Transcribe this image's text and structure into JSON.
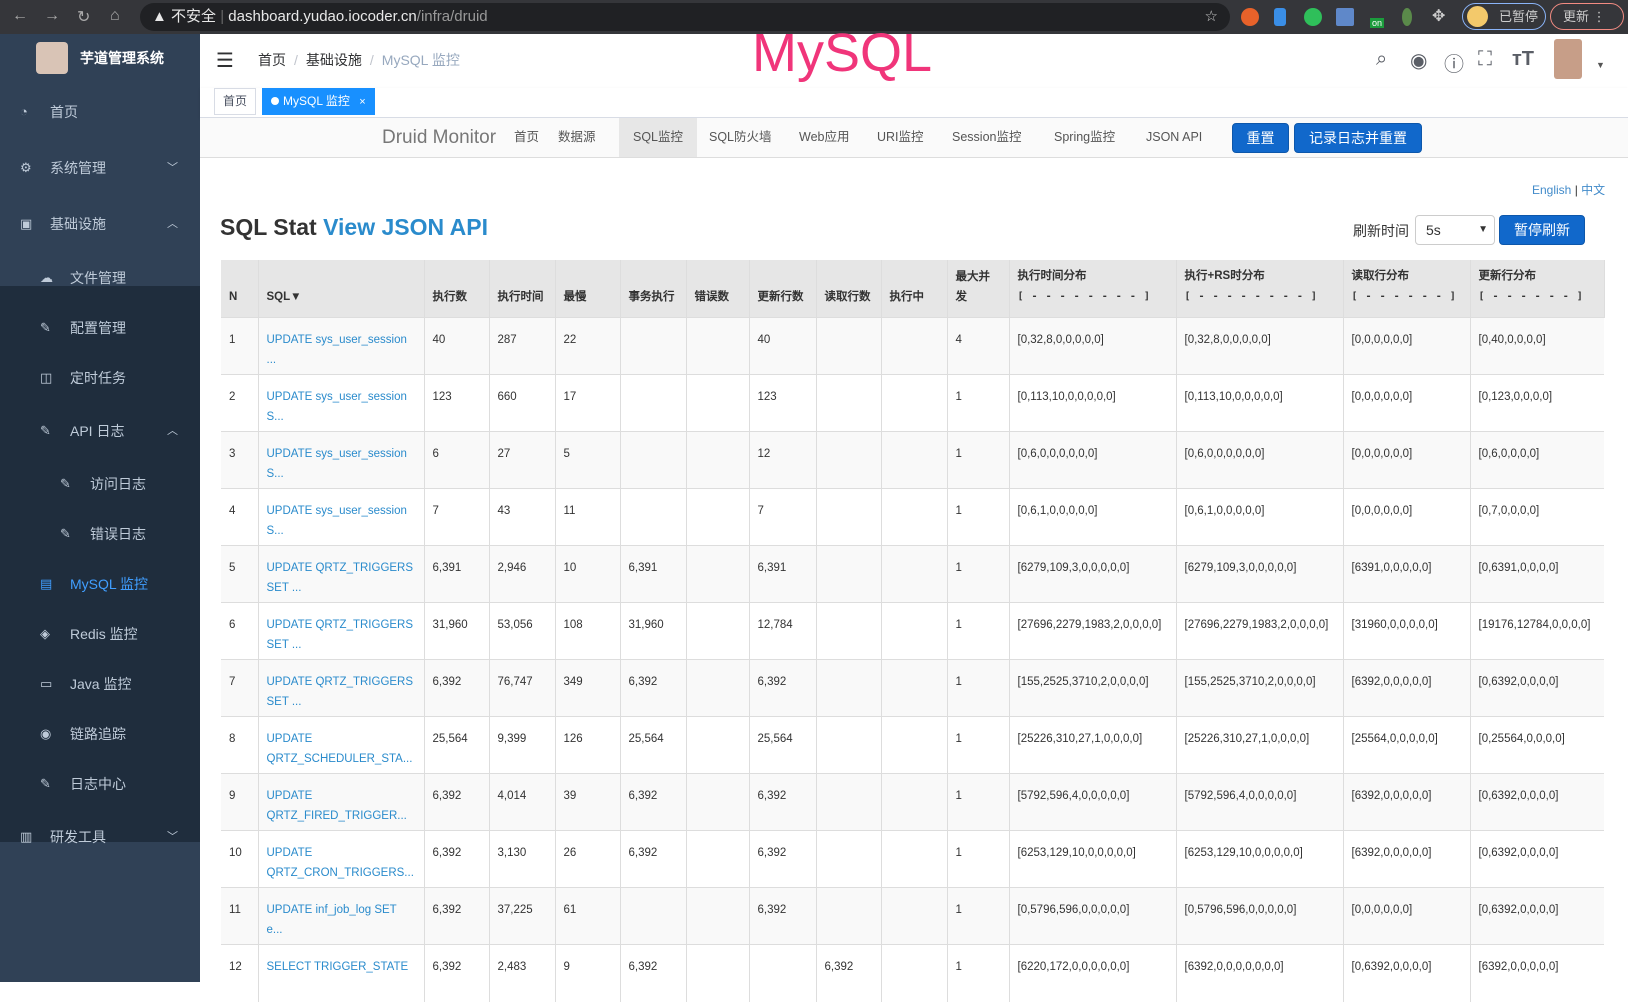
{
  "browser": {
    "security": "不安全",
    "url_host": "dashboard.yudao.iocoder.cn",
    "url_path": "/infra/druid",
    "paused": "已暂停",
    "update": "更新",
    "ext_on": "on"
  },
  "app": {
    "name": "芋道管理系统",
    "watermark": "MySQL"
  },
  "sidebar": {
    "items": [
      {
        "label": "首页",
        "icon": "dashboard-icon"
      },
      {
        "label": "系统管理",
        "icon": "gear-icon",
        "chevron": "﹀"
      },
      {
        "label": "基础设施",
        "icon": "monitor-icon",
        "chevron": "︿"
      },
      {
        "label": "文件管理",
        "icon": "upload-icon"
      },
      {
        "label": "配置管理",
        "icon": "edit-icon"
      },
      {
        "label": "定时任务",
        "icon": "job-icon"
      },
      {
        "label": "API 日志",
        "icon": "log-icon",
        "chevron": "︿"
      },
      {
        "label": "访问日志",
        "icon": "log-icon"
      },
      {
        "label": "错误日志",
        "icon": "log-icon"
      },
      {
        "label": "MySQL 监控",
        "icon": "database-icon",
        "active": true
      },
      {
        "label": "Redis 监控",
        "icon": "redis-icon"
      },
      {
        "label": "Java 监控",
        "icon": "server-icon"
      },
      {
        "label": "链路追踪",
        "icon": "eye-icon"
      },
      {
        "label": "日志中心",
        "icon": "log-icon"
      },
      {
        "label": "研发工具",
        "icon": "toolbox-icon",
        "chevron": "﹀"
      }
    ]
  },
  "breadcrumb": [
    "首页",
    "基础设施",
    "MySQL 监控"
  ],
  "tags": [
    {
      "label": "首页"
    },
    {
      "label": "MySQL 监控",
      "close": "×"
    }
  ],
  "druid": {
    "brand": "Druid Monitor",
    "nav": [
      "首页",
      "数据源",
      "SQL监控",
      "SQL防火墙",
      "Web应用",
      "URI监控",
      "Session监控",
      "Spring监控",
      "JSON API"
    ],
    "active": "SQL监控",
    "reset": "重置",
    "log_reset": "记录日志并重置"
  },
  "lang": {
    "en": "English",
    "sep": "|",
    "zh": "中文"
  },
  "page": {
    "title": "SQL Stat",
    "link": "View JSON API",
    "refresh_label": "刷新时间",
    "refresh_value": "5s",
    "pause": "暂停刷新"
  },
  "table": {
    "headers": [
      "N",
      "SQL▼",
      "执行数",
      "执行时间",
      "最慢",
      "事务执行",
      "错误数",
      "更新行数",
      "读取行数",
      "执行中",
      "最大并发",
      "执行时间分布",
      "执行+RS时分布",
      "读取行分布",
      "更新行分布"
    ],
    "header_sub": {
      "11": "[ - - - - - - - - ]",
      "12": "[ - - - - - - - - ]",
      "13": "[ - - - - - - ]",
      "14": "[ - - - - - - ]"
    },
    "rows": [
      [
        "1",
        "UPDATE sys_user_session ...",
        "40",
        "287",
        "22",
        "",
        "",
        "40",
        "",
        "",
        "4",
        "[0,32,8,0,0,0,0,0]",
        "[0,32,8,0,0,0,0,0]",
        "[0,0,0,0,0,0]",
        "[0,40,0,0,0,0]"
      ],
      [
        "2",
        "UPDATE sys_user_session S...",
        "123",
        "660",
        "17",
        "",
        "",
        "123",
        "",
        "",
        "1",
        "[0,113,10,0,0,0,0,0]",
        "[0,113,10,0,0,0,0,0]",
        "[0,0,0,0,0,0]",
        "[0,123,0,0,0,0]"
      ],
      [
        "3",
        "UPDATE sys_user_session S...",
        "6",
        "27",
        "5",
        "",
        "",
        "12",
        "",
        "",
        "1",
        "[0,6,0,0,0,0,0,0]",
        "[0,6,0,0,0,0,0,0]",
        "[0,0,0,0,0,0]",
        "[0,6,0,0,0,0]"
      ],
      [
        "4",
        "UPDATE sys_user_session S...",
        "7",
        "43",
        "11",
        "",
        "",
        "7",
        "",
        "",
        "1",
        "[0,6,1,0,0,0,0,0]",
        "[0,6,1,0,0,0,0,0]",
        "[0,0,0,0,0,0]",
        "[0,7,0,0,0,0]"
      ],
      [
        "5",
        "UPDATE QRTZ_TRIGGERS SET ...",
        "6,391",
        "2,946",
        "10",
        "6,391",
        "",
        "6,391",
        "",
        "",
        "1",
        "[6279,109,3,0,0,0,0,0]",
        "[6279,109,3,0,0,0,0,0]",
        "[6391,0,0,0,0,0]",
        "[0,6391,0,0,0,0]"
      ],
      [
        "6",
        "UPDATE QRTZ_TRIGGERS SET ...",
        "31,960",
        "53,056",
        "108",
        "31,960",
        "",
        "12,784",
        "",
        "",
        "1",
        "[27696,2279,1983,2,0,0,0,0]",
        "[27696,2279,1983,2,0,0,0,0]",
        "[31960,0,0,0,0,0]",
        "[19176,12784,0,0,0,0]"
      ],
      [
        "7",
        "UPDATE QRTZ_TRIGGERS SET ...",
        "6,392",
        "76,747",
        "349",
        "6,392",
        "",
        "6,392",
        "",
        "",
        "1",
        "[155,2525,3710,2,0,0,0,0]",
        "[155,2525,3710,2,0,0,0,0]",
        "[6392,0,0,0,0,0]",
        "[0,6392,0,0,0,0]"
      ],
      [
        "8",
        "UPDATE QRTZ_SCHEDULER_STA...",
        "25,564",
        "9,399",
        "126",
        "25,564",
        "",
        "25,564",
        "",
        "",
        "1",
        "[25226,310,27,1,0,0,0,0]",
        "[25226,310,27,1,0,0,0,0]",
        "[25564,0,0,0,0,0]",
        "[0,25564,0,0,0,0]"
      ],
      [
        "9",
        "UPDATE QRTZ_FIRED_TRIGGER...",
        "6,392",
        "4,014",
        "39",
        "6,392",
        "",
        "6,392",
        "",
        "",
        "1",
        "[5792,596,4,0,0,0,0,0]",
        "[5792,596,4,0,0,0,0,0]",
        "[6392,0,0,0,0,0]",
        "[0,6392,0,0,0,0]"
      ],
      [
        "10",
        "UPDATE QRTZ_CRON_TRIGGERS...",
        "6,392",
        "3,130",
        "26",
        "6,392",
        "",
        "6,392",
        "",
        "",
        "1",
        "[6253,129,10,0,0,0,0,0]",
        "[6253,129,10,0,0,0,0,0]",
        "[6392,0,0,0,0,0]",
        "[0,6392,0,0,0,0]"
      ],
      [
        "11",
        "UPDATE inf_job_log SET e...",
        "6,392",
        "37,225",
        "61",
        "",
        "",
        "6,392",
        "",
        "",
        "1",
        "[0,5796,596,0,0,0,0,0]",
        "[0,5796,596,0,0,0,0,0]",
        "[0,0,0,0,0,0]",
        "[0,6392,0,0,0,0]"
      ],
      [
        "12",
        "SELECT TRIGGER_STATE",
        "6,392",
        "2,483",
        "9",
        "6,392",
        "",
        "",
        "6,392",
        "",
        "1",
        "[6220,172,0,0,0,0,0,0]",
        "[6392,0,0,0,0,0,0,0]",
        "[0,6392,0,0,0,0]",
        "[6392,0,0,0,0,0]"
      ]
    ]
  },
  "colors": {
    "sidebar": "#304156",
    "submenu": "#1f2d3d",
    "active": "#409eff",
    "primary_btn": "#1168cb",
    "link": "#2a8bcc",
    "watermark": "#f0357a"
  }
}
